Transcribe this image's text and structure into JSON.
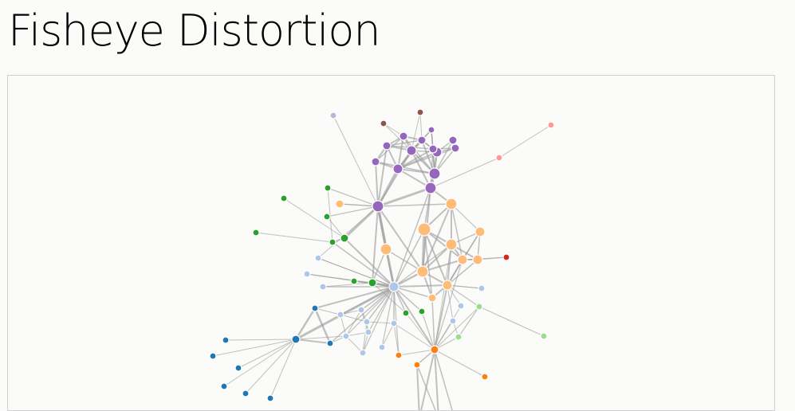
{
  "page": {
    "title": "Fisheye Distortion"
  },
  "group_colors": {
    "g0": "#1f77b4",
    "g1": "#aec7e8",
    "g2": "#ff7f0e",
    "g3": "#ffbb78",
    "g4": "#2ca02c",
    "g5": "#98df8a",
    "g6": "#d62728",
    "g7": "#ff9896",
    "g8": "#9467bd",
    "g9": "#c5b0d5",
    "g10": "#8c564b"
  }
}
